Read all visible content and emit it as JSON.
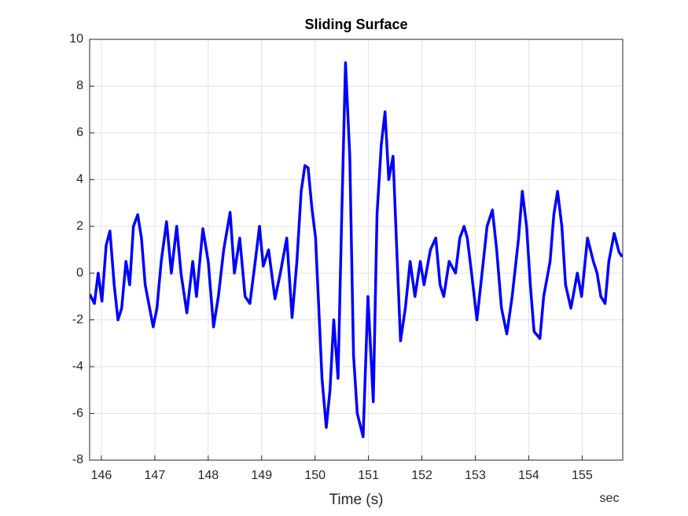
{
  "chart_data": {
    "type": "line",
    "title": "Sliding Surface",
    "x_label": "Time (s)",
    "x_unit_label": "sec",
    "xlim": [
      145.78,
      155.76
    ],
    "ylim": [
      -8,
      10
    ],
    "xticks": [
      146,
      147,
      148,
      149,
      150,
      151,
      152,
      153,
      154,
      155
    ],
    "yticks": [
      -8,
      -6,
      -4,
      -2,
      0,
      2,
      4,
      6,
      8,
      10
    ],
    "grid": true,
    "x": [
      145.78,
      145.87,
      145.94,
      146.01,
      146.09,
      146.16,
      146.24,
      146.31,
      146.38,
      146.46,
      146.53,
      146.6,
      146.68,
      146.75,
      146.82,
      146.97,
      147.04,
      147.12,
      147.22,
      147.31,
      147.41,
      147.49,
      147.6,
      147.71,
      147.78,
      147.9,
      148.0,
      148.1,
      148.19,
      148.29,
      148.41,
      148.49,
      148.59,
      148.69,
      148.78,
      148.88,
      148.96,
      149.03,
      149.13,
      149.25,
      149.35,
      149.47,
      149.57,
      149.66,
      149.74,
      149.81,
      149.87,
      149.94,
      150.01,
      150.06,
      150.13,
      150.21,
      150.28,
      150.35,
      150.43,
      150.5,
      150.57,
      150.65,
      150.72,
      150.79,
      150.9,
      150.99,
      151.09,
      151.16,
      151.24,
      151.31,
      151.38,
      151.46,
      151.53,
      151.6,
      151.69,
      151.78,
      151.87,
      151.97,
      152.04,
      152.16,
      152.26,
      152.34,
      152.41,
      152.51,
      152.63,
      152.71,
      152.79,
      152.85,
      152.93,
      153.03,
      153.15,
      153.22,
      153.32,
      153.4,
      153.49,
      153.59,
      153.69,
      153.81,
      153.88,
      153.96,
      154.03,
      154.1,
      154.21,
      154.28,
      154.4,
      154.47,
      154.54,
      154.62,
      154.69,
      154.79,
      154.91,
      154.99,
      155.1,
      155.21,
      155.28,
      155.35,
      155.43,
      155.5,
      155.6,
      155.69,
      155.75
    ],
    "series": [
      {
        "color": "#0000ff",
        "values": [
          -0.9,
          -1.3,
          0,
          -1.2,
          1.2,
          1.8,
          -0.5,
          -2.0,
          -1.5,
          0.5,
          -0.5,
          2.0,
          2.5,
          1.5,
          -0.5,
          -2.3,
          -1.5,
          0.5,
          2.2,
          0,
          2.0,
          0,
          -1.7,
          0.5,
          -1.0,
          1.9,
          0.5,
          -2.3,
          -1.0,
          1.0,
          2.6,
          0,
          1.5,
          -1.0,
          -1.3,
          0.5,
          2.0,
          0.3,
          1.0,
          -1.1,
          0,
          1.5,
          -1.9,
          0.5,
          3.5,
          4.6,
          4.5,
          2.8,
          1.5,
          -1.0,
          -4.5,
          -6.6,
          -5.0,
          -2.0,
          -4.5,
          2.5,
          9.0,
          5.0,
          -3.5,
          -6.0,
          -7.0,
          -1.0,
          -5.5,
          2.5,
          5.5,
          6.9,
          4.0,
          5.0,
          1.0,
          -2.9,
          -1.5,
          0.5,
          -1.0,
          0.5,
          -0.5,
          1.0,
          1.5,
          -0.5,
          -1.0,
          0.5,
          0,
          1.5,
          2.0,
          1.5,
          0,
          -2.0,
          0.5,
          2.0,
          2.7,
          1.0,
          -1.5,
          -2.6,
          -1.0,
          1.5,
          3.5,
          2.0,
          -0.5,
          -2.5,
          -2.8,
          -1.0,
          0.5,
          2.5,
          3.5,
          2.0,
          -0.5,
          -1.5,
          0,
          -1.0,
          1.5,
          0.5,
          0,
          -1.0,
          -1.3,
          0.5,
          1.7,
          0.9,
          0.7
        ]
      }
    ]
  }
}
